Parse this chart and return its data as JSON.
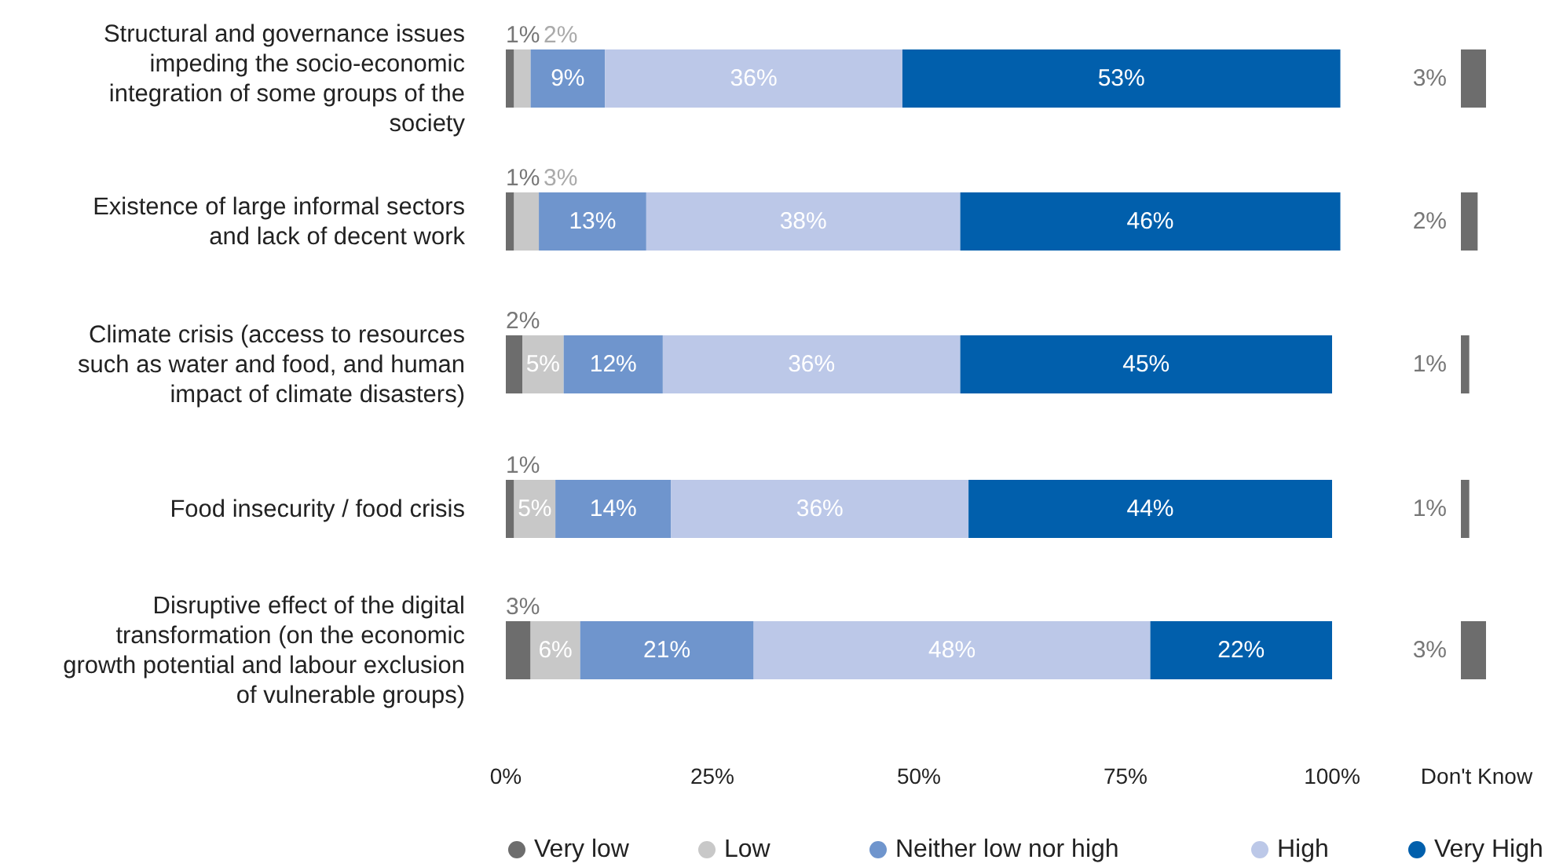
{
  "chart_data": [
    {
      "type": "bar",
      "orientation": "horizontal",
      "stacked": true,
      "categories": [
        "Structural and governance issues impeding the socio-economic integration of some groups of the society",
        "Existence of large informal sectors and lack of decent work",
        "Climate crisis (access to resources such as water and food, and human impact of climate disasters)",
        "Food insecurity / food crisis",
        "Disruptive effect of the digital transformation (on the economic growth potential and labour exclusion of vulnerable groups)"
      ],
      "series": [
        {
          "name": "Very low",
          "color": "#6d6d6d",
          "values": [
            1,
            1,
            2,
            1,
            3
          ],
          "value_labels": [
            "1%",
            "1%",
            "2%",
            "1%",
            "3%"
          ]
        },
        {
          "name": "Low",
          "color": "#c8c8c8",
          "values": [
            2,
            3,
            5,
            5,
            6
          ],
          "value_labels": [
            "2%",
            "3%",
            "5%",
            "5%",
            "6%"
          ]
        },
        {
          "name": "Neither low nor high",
          "color": "#6f95cd",
          "values": [
            9,
            13,
            12,
            14,
            21
          ],
          "value_labels": [
            "9%",
            "13%",
            "12%",
            "14%",
            "21%"
          ]
        },
        {
          "name": "High",
          "color": "#bcc8e8",
          "values": [
            36,
            38,
            36,
            36,
            48
          ],
          "value_labels": [
            "36%",
            "38%",
            "36%",
            "36%",
            "48%"
          ]
        },
        {
          "name": "Very High",
          "color": "#015fac",
          "values": [
            53,
            46,
            45,
            44,
            22
          ],
          "value_labels": [
            "53%",
            "46%",
            "45%",
            "44%",
            "22%"
          ]
        }
      ],
      "xlim": [
        0,
        101
      ],
      "xticks": [
        {
          "value": 0,
          "label": "0%"
        },
        {
          "value": 25,
          "label": "25%"
        },
        {
          "value": 50,
          "label": "50%"
        },
        {
          "value": 75,
          "label": "75%"
        },
        {
          "value": 100,
          "label": "100%"
        }
      ],
      "legend": "bottom",
      "grid": false
    },
    {
      "type": "bar",
      "orientation": "horizontal",
      "xlabel": "Don't Know",
      "categories": [
        null,
        null,
        null,
        null,
        null
      ],
      "series": [
        {
          "color": "#6d6d6d",
          "values": [
            3,
            2,
            1,
            1,
            3
          ],
          "value_labels": [
            "3%",
            "2%",
            "1%",
            "1%",
            "3%"
          ]
        }
      ],
      "xlim": [
        0,
        3
      ],
      "grid": false
    }
  ]
}
